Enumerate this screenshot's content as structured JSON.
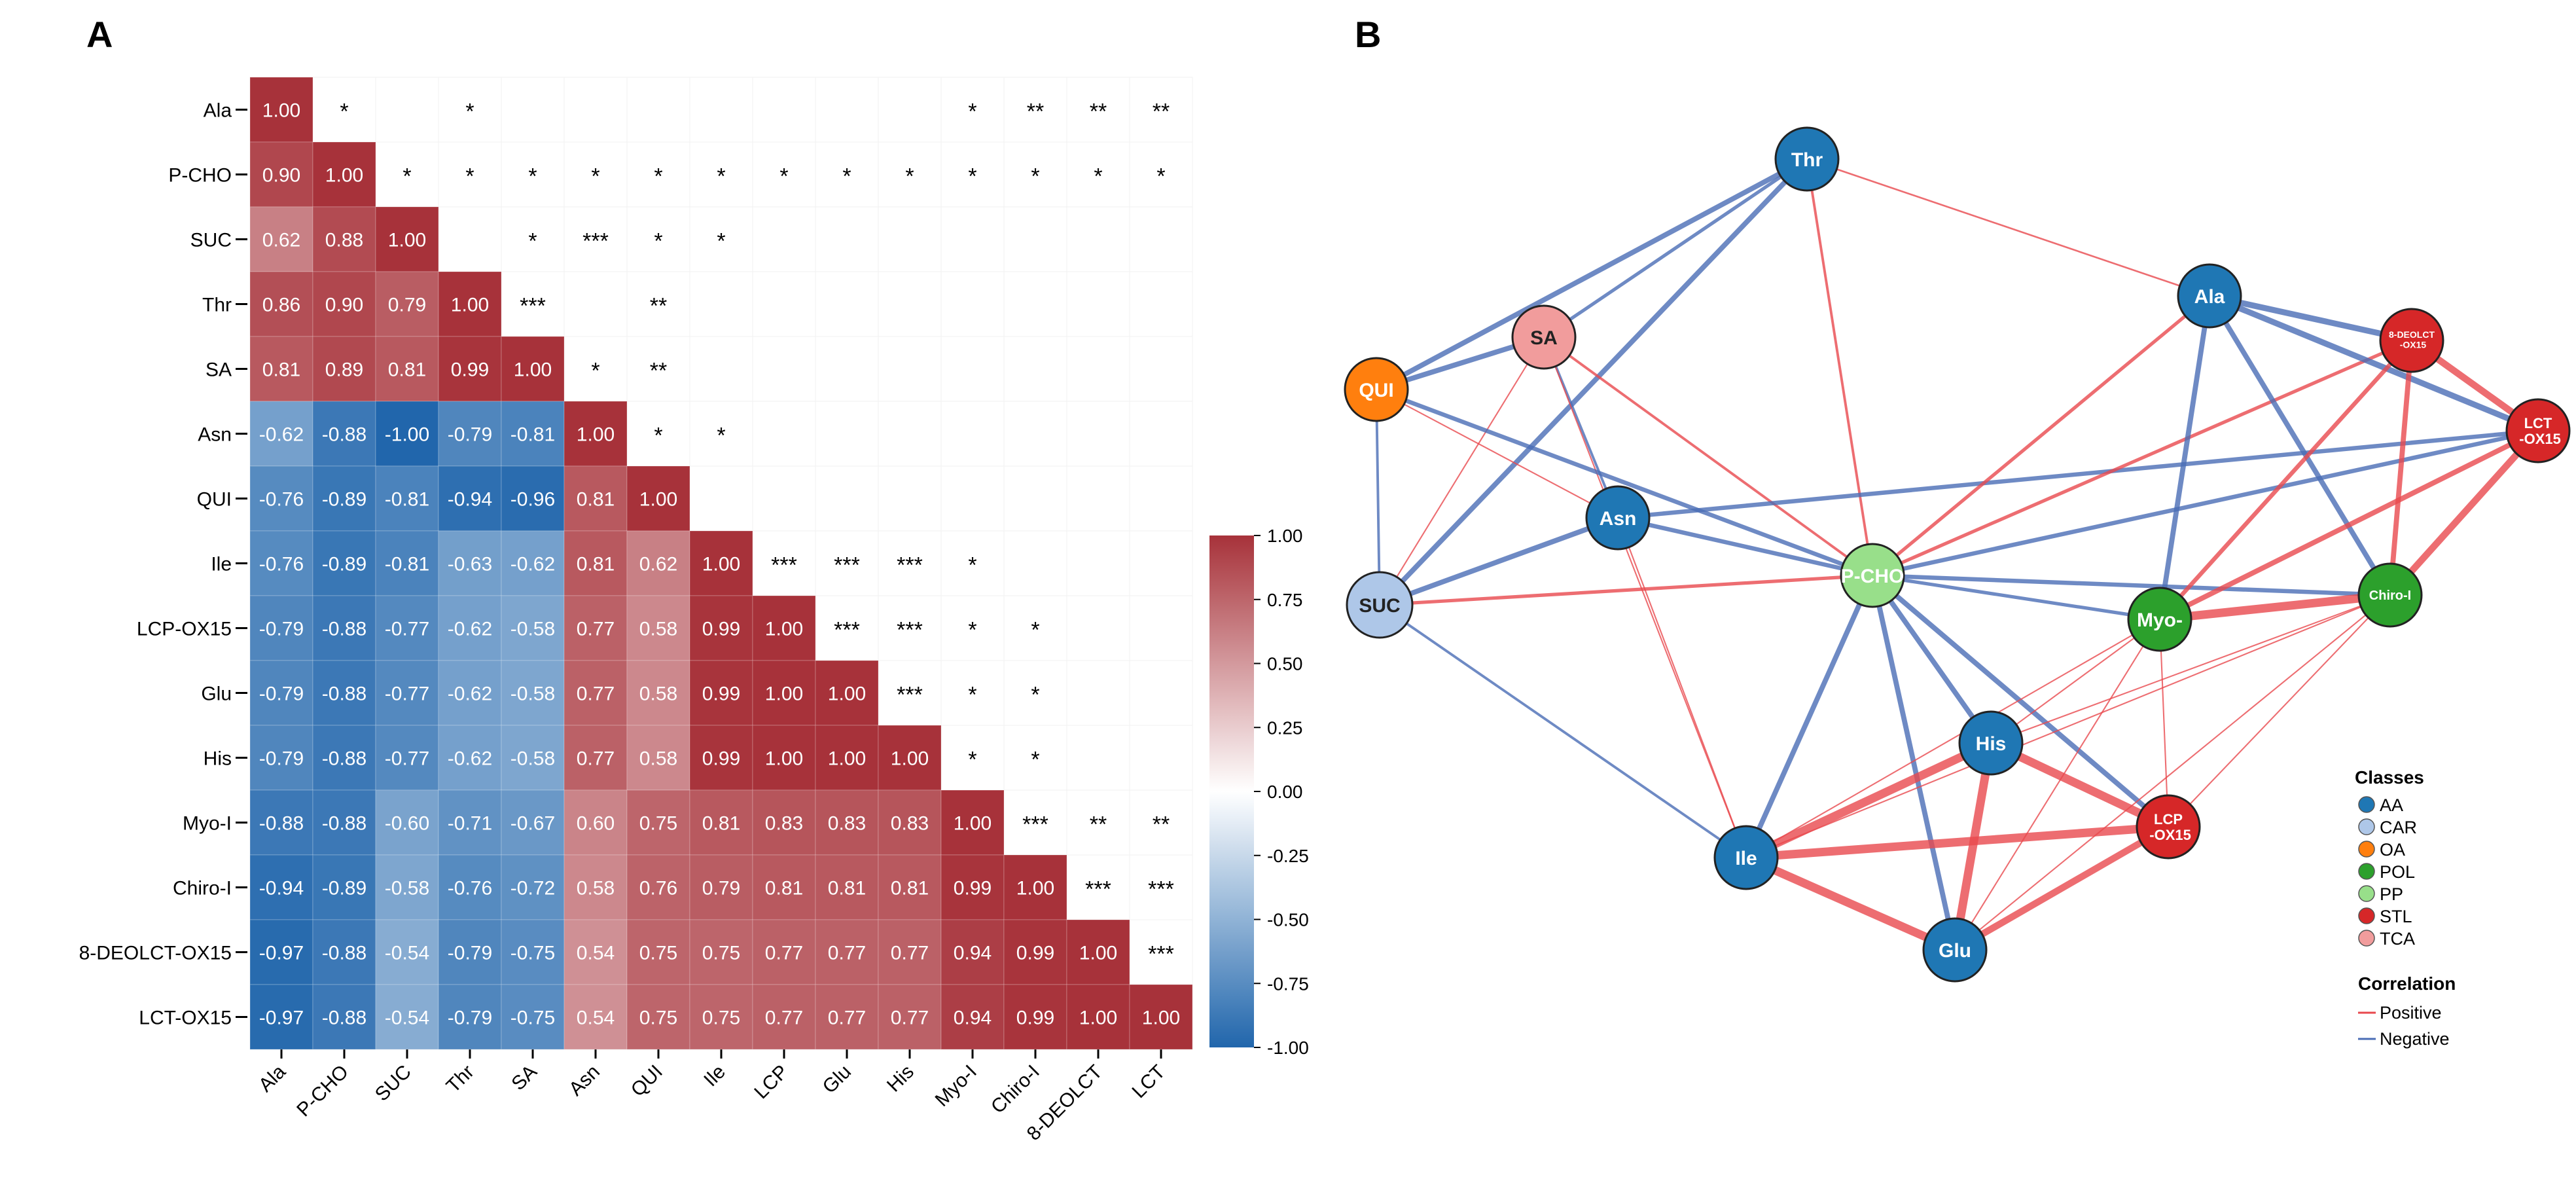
{
  "panels": {
    "a": "A",
    "b": "B"
  },
  "chart_data": [
    {
      "type": "heatmap",
      "title": "A",
      "variables": [
        "Ala",
        "P-CHO",
        "SUC",
        "Thr",
        "SA",
        "Asn",
        "QUI",
        "Ile",
        "LCP-OX15",
        "Glu",
        "His",
        "Myo-I",
        "Chiro-I",
        "8-DEOLCT-OX15",
        "LCT-OX15"
      ],
      "x_tick_labels": [
        "Ala",
        "P-CHO",
        "SUC",
        "Thr",
        "SA",
        "Asn",
        "QUI",
        "Ile",
        "LCP",
        "Glu",
        "His",
        "Myo-I",
        "Chiro-I",
        "8-DEOLCT",
        "LCT"
      ],
      "lower_triangle_values": [
        [
          "1.00"
        ],
        [
          "0.90",
          "1.00"
        ],
        [
          "0.62",
          "0.88",
          "1.00"
        ],
        [
          "0.86",
          "0.90",
          "0.79",
          "1.00"
        ],
        [
          "0.81",
          "0.89",
          "0.81",
          "0.99",
          "1.00"
        ],
        [
          "-0.62",
          "-0.88",
          "-1.00",
          "-0.79",
          "-0.81",
          "1.00"
        ],
        [
          "-0.76",
          "-0.89",
          "-0.81",
          "-0.94",
          "-0.96",
          "0.81",
          "1.00"
        ],
        [
          "-0.76",
          "-0.89",
          "-0.81",
          "-0.63",
          "-0.62",
          "0.81",
          "0.62",
          "1.00"
        ],
        [
          "-0.79",
          "-0.88",
          "-0.77",
          "-0.62",
          "-0.58",
          "0.77",
          "0.58",
          "0.99",
          "1.00"
        ],
        [
          "-0.79",
          "-0.88",
          "-0.77",
          "-0.62",
          "-0.58",
          "0.77",
          "0.58",
          "0.99",
          "1.00",
          "1.00"
        ],
        [
          "-0.79",
          "-0.88",
          "-0.77",
          "-0.62",
          "-0.58",
          "0.77",
          "0.58",
          "0.99",
          "1.00",
          "1.00",
          "1.00"
        ],
        [
          "-0.88",
          "-0.88",
          "-0.60",
          "-0.71",
          "-0.67",
          "0.60",
          "0.75",
          "0.81",
          "0.83",
          "0.83",
          "0.83",
          "1.00"
        ],
        [
          "-0.94",
          "-0.89",
          "-0.58",
          "-0.76",
          "-0.72",
          "0.58",
          "0.76",
          "0.79",
          "0.81",
          "0.81",
          "0.81",
          "0.99",
          "1.00"
        ],
        [
          "-0.97",
          "-0.88",
          "-0.54",
          "-0.79",
          "-0.75",
          "0.54",
          "0.75",
          "0.75",
          "0.77",
          "0.77",
          "0.77",
          "0.94",
          "0.99",
          "1.00"
        ],
        [
          "-0.97",
          "-0.88",
          "-0.54",
          "-0.79",
          "-0.75",
          "0.54",
          "0.75",
          "0.75",
          "0.77",
          "0.77",
          "0.77",
          "0.94",
          "0.99",
          "1.00",
          "1.00"
        ]
      ],
      "significance_upper": [
        {
          "row": 0,
          "col": 1,
          "stars": "*"
        },
        {
          "row": 0,
          "col": 3,
          "stars": "*"
        },
        {
          "row": 0,
          "col": 11,
          "stars": "*"
        },
        {
          "row": 0,
          "col": 12,
          "stars": "**"
        },
        {
          "row": 0,
          "col": 13,
          "stars": "**"
        },
        {
          "row": 0,
          "col": 14,
          "stars": "**"
        },
        {
          "row": 1,
          "col": 2,
          "stars": "*"
        },
        {
          "row": 1,
          "col": 3,
          "stars": "*"
        },
        {
          "row": 1,
          "col": 4,
          "stars": "*"
        },
        {
          "row": 1,
          "col": 5,
          "stars": "*"
        },
        {
          "row": 1,
          "col": 6,
          "stars": "*"
        },
        {
          "row": 1,
          "col": 7,
          "stars": "*"
        },
        {
          "row": 1,
          "col": 8,
          "stars": "*"
        },
        {
          "row": 1,
          "col": 9,
          "stars": "*"
        },
        {
          "row": 1,
          "col": 10,
          "stars": "*"
        },
        {
          "row": 1,
          "col": 11,
          "stars": "*"
        },
        {
          "row": 1,
          "col": 12,
          "stars": "*"
        },
        {
          "row": 1,
          "col": 13,
          "stars": "*"
        },
        {
          "row": 1,
          "col": 14,
          "stars": "*"
        },
        {
          "row": 2,
          "col": 4,
          "stars": "*"
        },
        {
          "row": 2,
          "col": 5,
          "stars": "***"
        },
        {
          "row": 2,
          "col": 6,
          "stars": "*"
        },
        {
          "row": 2,
          "col": 7,
          "stars": "*"
        },
        {
          "row": 3,
          "col": 4,
          "stars": "***"
        },
        {
          "row": 3,
          "col": 6,
          "stars": "**"
        },
        {
          "row": 4,
          "col": 5,
          "stars": "*"
        },
        {
          "row": 4,
          "col": 6,
          "stars": "**"
        },
        {
          "row": 5,
          "col": 6,
          "stars": "*"
        },
        {
          "row": 5,
          "col": 7,
          "stars": "*"
        },
        {
          "row": 7,
          "col": 8,
          "stars": "***"
        },
        {
          "row": 7,
          "col": 9,
          "stars": "***"
        },
        {
          "row": 7,
          "col": 10,
          "stars": "***"
        },
        {
          "row": 7,
          "col": 11,
          "stars": "*"
        },
        {
          "row": 8,
          "col": 9,
          "stars": "***"
        },
        {
          "row": 8,
          "col": 10,
          "stars": "***"
        },
        {
          "row": 8,
          "col": 11,
          "stars": "*"
        },
        {
          "row": 8,
          "col": 12,
          "stars": "*"
        },
        {
          "row": 9,
          "col": 10,
          "stars": "***"
        },
        {
          "row": 9,
          "col": 11,
          "stars": "*"
        },
        {
          "row": 9,
          "col": 12,
          "stars": "*"
        },
        {
          "row": 10,
          "col": 11,
          "stars": "*"
        },
        {
          "row": 10,
          "col": 12,
          "stars": "*"
        },
        {
          "row": 11,
          "col": 12,
          "stars": "***"
        },
        {
          "row": 11,
          "col": 13,
          "stars": "**"
        },
        {
          "row": 11,
          "col": 14,
          "stars": "**"
        },
        {
          "row": 12,
          "col": 13,
          "stars": "***"
        },
        {
          "row": 12,
          "col": 14,
          "stars": "***"
        },
        {
          "row": 13,
          "col": 14,
          "stars": "***"
        }
      ],
      "colorbar": {
        "range": [
          -1,
          1
        ],
        "ticks": [
          "1.00",
          "0.75",
          "0.50",
          "0.25",
          "0.00",
          "-0.25",
          "-0.50",
          "-0.75",
          "-1.00"
        ],
        "low_color": "#2166ac",
        "mid_color": "#ffffff",
        "high_color": "#a7323a"
      }
    },
    {
      "type": "network",
      "title": "B",
      "nodes": [
        {
          "id": "Thr",
          "label": "Thr",
          "class": "AA"
        },
        {
          "id": "SA",
          "label": "SA",
          "class": "TCA"
        },
        {
          "id": "QUI",
          "label": "QUI",
          "class": "OA"
        },
        {
          "id": "Ala",
          "label": "Ala",
          "class": "AA"
        },
        {
          "id": "8DEO",
          "label": "8-DEOLCT\n-OX15",
          "class": "STL"
        },
        {
          "id": "LCT",
          "label": "LCT\n-OX15",
          "class": "STL"
        },
        {
          "id": "Asn",
          "label": "Asn",
          "class": "AA"
        },
        {
          "id": "PCHO",
          "label": "P-CHO",
          "class": "PP"
        },
        {
          "id": "SUC",
          "label": "SUC",
          "class": "CAR"
        },
        {
          "id": "Myo",
          "label": "Myo-",
          "class": "POL"
        },
        {
          "id": "Chiro",
          "label": "Chiro-I",
          "class": "POL"
        },
        {
          "id": "His",
          "label": "His",
          "class": "AA"
        },
        {
          "id": "LCP",
          "label": "LCP\n-OX15",
          "class": "STL"
        },
        {
          "id": "Ile",
          "label": "Ile",
          "class": "AA"
        },
        {
          "id": "Glu",
          "label": "Glu",
          "class": "AA"
        }
      ],
      "edges": [
        [
          "Thr",
          "QUI",
          "neg",
          3
        ],
        [
          "Thr",
          "SUC",
          "neg",
          3
        ],
        [
          "Thr",
          "PCHO",
          "pos",
          1.5
        ],
        [
          "Thr",
          "Ala",
          "pos",
          1
        ],
        [
          "Thr",
          "SA",
          "neg",
          2
        ],
        [
          "SA",
          "QUI",
          "neg",
          3
        ],
        [
          "SA",
          "Asn",
          "neg",
          1.5
        ],
        [
          "SA",
          "PCHO",
          "pos",
          1.5
        ],
        [
          "SA",
          "SUC",
          "pos",
          0.8
        ],
        [
          "SA",
          "Ile",
          "pos",
          0.8
        ],
        [
          "QUI",
          "SUC",
          "neg",
          1.5
        ],
        [
          "QUI",
          "Asn",
          "pos",
          0.8
        ],
        [
          "QUI",
          "PCHO",
          "neg",
          2.5
        ],
        [
          "Asn",
          "SUC",
          "neg",
          3
        ],
        [
          "Asn",
          "PCHO",
          "neg",
          2.5
        ],
        [
          "Asn",
          "Ile",
          "pos",
          0.8
        ],
        [
          "Asn",
          "LCT",
          "neg",
          2.5
        ],
        [
          "SUC",
          "PCHO",
          "pos",
          2
        ],
        [
          "SUC",
          "Ile",
          "neg",
          1.5
        ],
        [
          "PCHO",
          "Ala",
          "pos",
          2
        ],
        [
          "PCHO",
          "8DEO",
          "pos",
          2
        ],
        [
          "PCHO",
          "LCT",
          "neg",
          2.5
        ],
        [
          "PCHO",
          "Chiro",
          "neg",
          2.5
        ],
        [
          "PCHO",
          "Myo",
          "neg",
          2
        ],
        [
          "PCHO",
          "Ile",
          "neg",
          3
        ],
        [
          "PCHO",
          "Glu",
          "neg",
          3
        ],
        [
          "PCHO",
          "His",
          "neg",
          3
        ],
        [
          "PCHO",
          "LCP",
          "neg",
          3
        ],
        [
          "Ala",
          "8DEO",
          "neg",
          3.5
        ],
        [
          "Ala",
          "LCT",
          "neg",
          3.5
        ],
        [
          "Ala",
          "Myo",
          "neg",
          3
        ],
        [
          "Ala",
          "Chiro",
          "neg",
          3
        ],
        [
          "8DEO",
          "Myo",
          "pos",
          2.5
        ],
        [
          "8DEO",
          "Chiro",
          "pos",
          3
        ],
        [
          "8DEO",
          "LCT",
          "pos",
          4
        ],
        [
          "LCT",
          "Myo",
          "pos",
          3
        ],
        [
          "LCT",
          "Chiro",
          "pos",
          4
        ],
        [
          "Myo",
          "Chiro",
          "pos",
          5
        ],
        [
          "Myo",
          "Ile",
          "pos",
          0.8
        ],
        [
          "Myo",
          "His",
          "pos",
          0.8
        ],
        [
          "Myo",
          "LCP",
          "pos",
          0.8
        ],
        [
          "Myo",
          "Glu",
          "pos",
          0.8
        ],
        [
          "Chiro",
          "Ile",
          "pos",
          0.8
        ],
        [
          "Chiro",
          "His",
          "pos",
          0.8
        ],
        [
          "Chiro",
          "LCP",
          "pos",
          0.8
        ],
        [
          "Chiro",
          "Glu",
          "pos",
          0.8
        ],
        [
          "Ile",
          "His",
          "pos",
          5
        ],
        [
          "Ile",
          "LCP",
          "pos",
          5
        ],
        [
          "Ile",
          "Glu",
          "pos",
          5
        ],
        [
          "His",
          "LCP",
          "pos",
          5
        ],
        [
          "His",
          "Glu",
          "pos",
          5
        ],
        [
          "LCP",
          "Glu",
          "pos",
          4
        ]
      ],
      "legend": {
        "classes_title": "Classes",
        "classes": [
          {
            "name": "AA",
            "color": "#1f77b4"
          },
          {
            "name": "CAR",
            "color": "#aec7e8"
          },
          {
            "name": "OA",
            "color": "#ff7f0e"
          },
          {
            "name": "POL",
            "color": "#2ca02c"
          },
          {
            "name": "PP",
            "color": "#98df8a"
          },
          {
            "name": "STL",
            "color": "#d62728"
          },
          {
            "name": "TCA",
            "color": "#f19c9c"
          }
        ],
        "correlation_title": "Correlation",
        "correlation": [
          {
            "name": "Positive",
            "color": "#e8484e"
          },
          {
            "name": "Negative",
            "color": "#4a6db5"
          }
        ]
      }
    }
  ]
}
